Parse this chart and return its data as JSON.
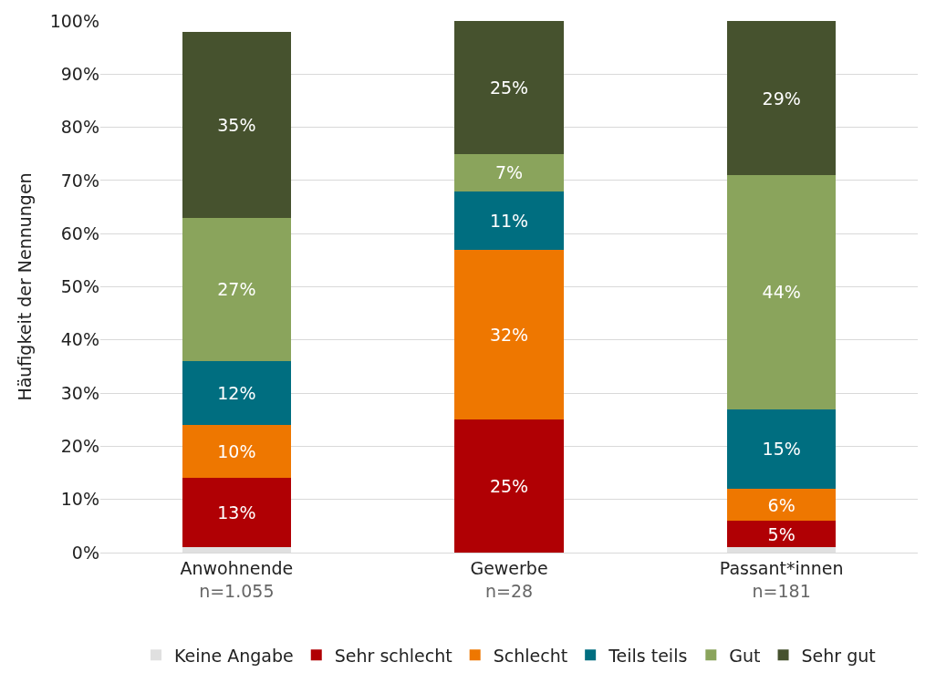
{
  "chart_data": {
    "type": "bar",
    "stacked": true,
    "ylabel": "Häufigkeit der Nennungen",
    "categories": [
      "Anwohnende\nn=1.055",
      "Gewerbe\nn=28",
      "Passant*innen\nn=181"
    ],
    "series": [
      {
        "name": "Keine Angabe",
        "color": "#e0e0e0",
        "values": [
          1,
          0,
          1
        ],
        "value_labels": [
          null,
          null,
          null
        ]
      },
      {
        "name": "Sehr schlecht",
        "color": "#b00004",
        "values": [
          13,
          25,
          5
        ],
        "value_labels": [
          "13%",
          "25%",
          "5%"
        ]
      },
      {
        "name": "Schlecht",
        "color": "#ee7700",
        "values": [
          10,
          32,
          6
        ],
        "value_labels": [
          "10%",
          "32%",
          "6%"
        ]
      },
      {
        "name": "Teils teils",
        "color": "#006e80",
        "values": [
          12,
          11,
          15
        ],
        "value_labels": [
          "12%",
          "11%",
          "15%"
        ]
      },
      {
        "name": "Gut",
        "color": "#8aa45c",
        "values": [
          27,
          7,
          44
        ],
        "value_labels": [
          "27%",
          "7%",
          "44%"
        ]
      },
      {
        "name": "Sehr gut",
        "color": "#46522e",
        "values": [
          35,
          25,
          29
        ],
        "value_labels": [
          "35%",
          "25%",
          "29%"
        ]
      }
    ],
    "ylim": [
      0,
      100
    ],
    "yticks": [
      {
        "value": 0,
        "label": "0%"
      },
      {
        "value": 10,
        "label": "10%"
      },
      {
        "value": 20,
        "label": "20%"
      },
      {
        "value": 30,
        "label": "30%"
      },
      {
        "value": 40,
        "label": "40%"
      },
      {
        "value": 50,
        "label": "50%"
      },
      {
        "value": 60,
        "label": "60%"
      },
      {
        "value": 70,
        "label": "70%"
      },
      {
        "value": 80,
        "label": "80%"
      },
      {
        "value": 90,
        "label": "90%"
      },
      {
        "value": 100,
        "label": "100%"
      }
    ],
    "grid": "y",
    "legend": "bottom"
  }
}
